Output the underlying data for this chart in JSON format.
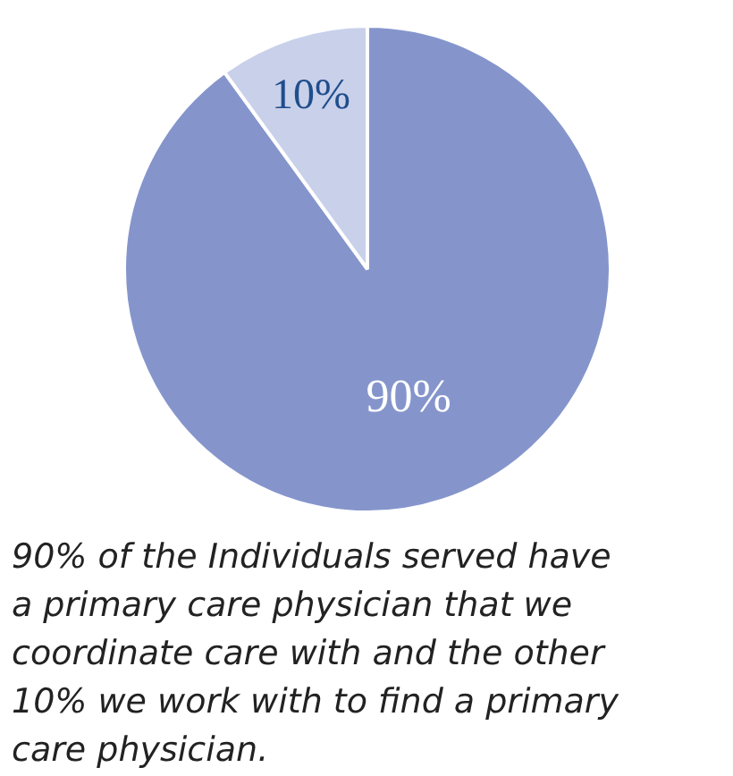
{
  "chart_data": {
    "type": "pie",
    "categories": [
      null,
      null
    ],
    "values": [
      90,
      10
    ],
    "colors": [
      "#8595cc",
      "#c9d0ea"
    ],
    "value_labels": [
      "90%",
      "10%"
    ],
    "annotations": [
      "90% of the Individuals served have\na primary care physician that we\ncoordinate care with and the other\n10% we work with to find a primary\ncare physician."
    ]
  }
}
